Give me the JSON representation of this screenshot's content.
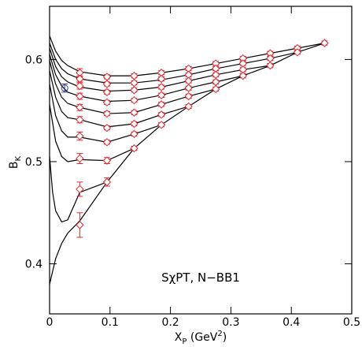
{
  "chart_data": {
    "type": "line",
    "xlabel": [
      "X",
      "P",
      " (GeV",
      "2",
      ")"
    ],
    "ylabel": [
      "B",
      "K"
    ],
    "annotation": "SχPT, N−BB1",
    "xlim": [
      0,
      0.5
    ],
    "ylim": [
      0.351,
      0.652
    ],
    "xticks": [
      0,
      0.1,
      0.2,
      0.3,
      0.4,
      0.5
    ],
    "yticks": [
      0.4,
      0.5,
      0.6
    ],
    "series": [
      {
        "color": "#000000",
        "x": [
          0,
          0.01,
          0.02,
          0.03,
          0.05,
          0.095,
          0.14,
          0.185,
          0.23,
          0.275,
          0.32,
          0.365,
          0.41,
          0.455
        ],
        "values": [
          0.623,
          0.608,
          0.599,
          0.594,
          0.588,
          0.584,
          0.584,
          0.587,
          0.591,
          0.596,
          0.601,
          0.606,
          0.611,
          0.616
        ]
      },
      {
        "color": "#000000",
        "x": [
          0,
          0.01,
          0.02,
          0.03,
          0.05,
          0.095,
          0.14,
          0.185,
          0.23,
          0.275,
          0.32,
          0.365,
          0.41
        ],
        "values": [
          0.616,
          0.6,
          0.591,
          0.586,
          0.581,
          0.577,
          0.577,
          0.58,
          0.585,
          0.591,
          0.596,
          0.601,
          0.607
        ]
      },
      {
        "color": "#000000",
        "x": [
          0,
          0.01,
          0.02,
          0.03,
          0.05,
          0.095,
          0.14,
          0.185,
          0.23,
          0.275,
          0.32,
          0.365
        ],
        "values": [
          0.611,
          0.593,
          0.583,
          0.578,
          0.573,
          0.569,
          0.57,
          0.573,
          0.579,
          0.585,
          0.59,
          0.594
        ]
      },
      {
        "color": "#000000",
        "x": [
          0,
          0.01,
          0.02,
          0.03,
          0.05,
          0.095,
          0.14,
          0.185,
          0.23,
          0.275,
          0.32
        ],
        "values": [
          0.605,
          0.585,
          0.574,
          0.568,
          0.564,
          0.559,
          0.56,
          0.565,
          0.572,
          0.578,
          0.584
        ]
      },
      {
        "color": "#000000",
        "x": [
          0,
          0.01,
          0.02,
          0.03,
          0.05,
          0.095,
          0.14,
          0.185,
          0.23,
          0.275
        ],
        "values": [
          0.599,
          0.576,
          0.563,
          0.557,
          0.553,
          0.547,
          0.548,
          0.556,
          0.564,
          0.571
        ]
      },
      {
        "color": "#000000",
        "x": [
          0,
          0.01,
          0.02,
          0.03,
          0.05,
          0.095,
          0.14,
          0.185,
          0.23
        ],
        "values": [
          0.589,
          0.563,
          0.549,
          0.543,
          0.541,
          0.534,
          0.537,
          0.546,
          0.554
        ]
      },
      {
        "color": "#000000",
        "x": [
          0,
          0.01,
          0.02,
          0.03,
          0.05,
          0.095,
          0.14,
          0.185
        ],
        "values": [
          0.576,
          0.545,
          0.53,
          0.524,
          0.524,
          0.519,
          0.527,
          0.536
        ]
      },
      {
        "color": "#000000",
        "x": [
          0,
          0.01,
          0.02,
          0.03,
          0.05,
          0.095,
          0.14
        ],
        "values": [
          0.556,
          0.52,
          0.505,
          0.5,
          0.502,
          0.501,
          0.513
        ]
      },
      {
        "color": "#000000",
        "x": [
          0,
          0.005,
          0.01,
          0.02,
          0.03,
          0.05,
          0.095
        ],
        "values": [
          0.505,
          0.47,
          0.452,
          0.441,
          0.443,
          0.47,
          0.48
        ]
      },
      {
        "color": "#000000",
        "x": [
          0,
          0.01,
          0.02,
          0.03,
          0.05,
          0.095,
          0.14,
          0.185,
          0.23,
          0.275,
          0.32,
          0.365,
          0.41,
          0.455
        ],
        "values": [
          0.38,
          0.405,
          0.42,
          0.43,
          0.442,
          0.48,
          0.513,
          0.536,
          0.554,
          0.571,
          0.584,
          0.594,
          0.607,
          0.616
        ]
      }
    ],
    "points": [
      {
        "color": "#e0282e",
        "marker": "diamond",
        "x": [
          0.05,
          0.05,
          0.05,
          0.05,
          0.05,
          0.05,
          0.05,
          0.05,
          0.05,
          0.05,
          0.095,
          0.095,
          0.095,
          0.095,
          0.095,
          0.095,
          0.095,
          0.095,
          0.095,
          0.14,
          0.14,
          0.14,
          0.14,
          0.14,
          0.14,
          0.14,
          0.14,
          0.185,
          0.185,
          0.185,
          0.185,
          0.185,
          0.185,
          0.185,
          0.23,
          0.23,
          0.23,
          0.23,
          0.23,
          0.23,
          0.275,
          0.275,
          0.275,
          0.275,
          0.275,
          0.32,
          0.32,
          0.32,
          0.32,
          0.365,
          0.365,
          0.365,
          0.41,
          0.41,
          0.455
        ],
        "values": [
          0.587,
          0.581,
          0.574,
          0.564,
          0.553,
          0.541,
          0.525,
          0.503,
          0.473,
          0.438,
          0.583,
          0.576,
          0.568,
          0.558,
          0.547,
          0.533,
          0.519,
          0.501,
          0.48,
          0.584,
          0.577,
          0.57,
          0.56,
          0.548,
          0.537,
          0.527,
          0.513,
          0.587,
          0.581,
          0.573,
          0.565,
          0.556,
          0.546,
          0.536,
          0.591,
          0.585,
          0.579,
          0.572,
          0.564,
          0.554,
          0.596,
          0.591,
          0.585,
          0.578,
          0.571,
          0.601,
          0.596,
          0.59,
          0.584,
          0.606,
          0.601,
          0.594,
          0.611,
          0.607,
          0.616
        ],
        "errors": [
          0.004,
          0.003,
          0.003,
          0.003,
          0.003,
          0.003,
          0.004,
          0.005,
          0.007,
          0.012,
          0.002,
          0.002,
          0.002,
          0.002,
          0.002,
          0.002,
          0.002,
          0.003,
          0.004,
          0.002,
          0.002,
          0.002,
          0.002,
          0.002,
          0.002,
          0.002,
          0.002,
          0.002,
          0.002,
          0.002,
          0.002,
          0.002,
          0.002,
          0.002,
          0.002,
          0.002,
          0.002,
          0.002,
          0.002,
          0.002,
          0.002,
          0.002,
          0.002,
          0.002,
          0.002,
          0.002,
          0.002,
          0.002,
          0.002,
          0.002,
          0.002,
          0.002,
          0.002,
          0.002,
          0.002
        ]
      },
      {
        "color": "#3b3ba0",
        "marker": "circle",
        "x": [
          0.025
        ],
        "values": [
          0.572
        ],
        "errors": [
          0.004
        ]
      }
    ]
  }
}
